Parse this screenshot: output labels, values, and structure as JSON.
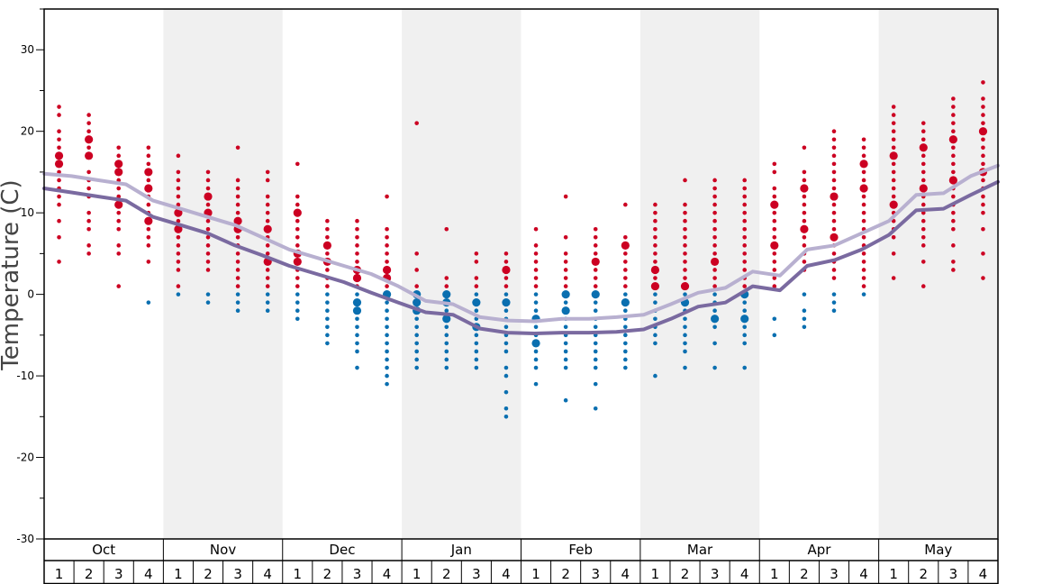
{
  "chart_data": {
    "type": "scatter",
    "ylabel": "Temperature (C)",
    "ylim": [
      -30,
      35
    ],
    "yticks": [
      -30,
      -20,
      -10,
      0,
      10,
      20,
      30
    ],
    "months": [
      "Oct",
      "Nov",
      "Dec",
      "Jan",
      "Feb",
      "Mar",
      "Apr",
      "May"
    ],
    "weeks": [
      "1",
      "2",
      "3",
      "4"
    ],
    "colors": {
      "warm": "#cc0022",
      "cold": "#0a6fb0",
      "upper_line": "#b8b0d0",
      "lower_line": "#7a6aa0",
      "band": "#f0f0f0"
    },
    "series": [
      {
        "values": [
          14.8,
          14.5,
          14.0,
          13.5,
          11.5,
          10.5,
          9.5,
          8.5,
          7.0,
          5.5,
          4.5,
          3.5,
          2.5,
          1.0,
          -0.8,
          -1.2,
          -2.8,
          -3.2,
          -3.3,
          -3.0,
          -3.0,
          -2.8,
          -2.5,
          -1.2,
          0.2,
          0.8,
          2.8,
          2.3,
          5.5,
          6.0,
          7.5,
          9.0,
          12.2,
          12.4,
          14.5,
          15.8
        ]
      },
      {
        "values": [
          13.0,
          12.5,
          12.0,
          11.5,
          9.5,
          8.5,
          7.5,
          6.0,
          4.8,
          3.5,
          2.5,
          1.5,
          0.2,
          -1.0,
          -2.2,
          -2.5,
          -4.2,
          -4.7,
          -4.8,
          -4.7,
          -4.7,
          -4.6,
          -4.3,
          -3.0,
          -1.5,
          -1.0,
          1.0,
          0.5,
          3.5,
          4.2,
          5.5,
          7.3,
          10.3,
          10.5,
          12.2,
          13.8
        ]
      }
    ],
    "points": [
      {
        "week": 1,
        "temps": [
          23,
          22,
          20,
          19,
          18,
          17,
          16,
          15,
          14,
          13,
          12,
          11,
          9,
          7,
          4
        ],
        "big": [
          17,
          16
        ]
      },
      {
        "week": 2,
        "temps": [
          22,
          21,
          20,
          19,
          18,
          17,
          15,
          14,
          13,
          12,
          10,
          9,
          8,
          6,
          5
        ],
        "big": [
          19,
          17
        ]
      },
      {
        "week": 3,
        "temps": [
          18,
          17,
          16,
          15,
          14,
          13,
          12,
          11,
          10,
          9,
          8,
          6,
          5,
          1
        ],
        "big": [
          16,
          15,
          11
        ]
      },
      {
        "week": 4,
        "temps": [
          18,
          17,
          16,
          15,
          14,
          13,
          12,
          11,
          10,
          9,
          8,
          7,
          6,
          4,
          -1
        ],
        "big": [
          15,
          13,
          9
        ]
      },
      {
        "week": 5,
        "temps": [
          17,
          15,
          14,
          13,
          12,
          11,
          10,
          9,
          8,
          7,
          6,
          5,
          4,
          3,
          1,
          0
        ],
        "big": [
          10,
          8
        ]
      },
      {
        "week": 6,
        "temps": [
          15,
          14,
          13,
          12,
          11,
          10,
          9,
          8,
          7,
          6,
          5,
          4,
          3,
          0,
          -1
        ],
        "big": [
          12,
          10
        ]
      },
      {
        "week": 7,
        "temps": [
          18,
          14,
          13,
          12,
          11,
          10,
          9,
          8,
          7,
          6,
          5,
          4,
          3,
          2,
          1,
          0,
          -1,
          -2
        ],
        "big": [
          9,
          8
        ]
      },
      {
        "week": 8,
        "temps": [
          15,
          14,
          12,
          11,
          10,
          9,
          8,
          7,
          6,
          5,
          4,
          3,
          2,
          1,
          0,
          -1,
          -2
        ],
        "big": [
          8,
          4
        ]
      },
      {
        "week": 9,
        "temps": [
          16,
          12,
          11,
          10,
          9,
          8,
          7,
          6,
          5,
          4,
          3,
          2,
          1,
          0,
          -1,
          -2,
          -3
        ],
        "big": [
          4,
          5,
          10
        ]
      },
      {
        "week": 10,
        "temps": [
          9,
          8,
          7,
          6,
          5,
          4,
          3,
          2,
          1,
          0,
          -1,
          -2,
          -3,
          -4,
          -5,
          -6
        ],
        "big": [
          6,
          4
        ]
      },
      {
        "week": 11,
        "temps": [
          9,
          8,
          7,
          6,
          5,
          4,
          3,
          2,
          1,
          0,
          -1,
          -2,
          -3,
          -4,
          -5,
          -6,
          -7,
          -9
        ],
        "big": [
          3,
          2,
          -1,
          -2
        ]
      },
      {
        "week": 12,
        "temps": [
          12,
          8,
          7,
          6,
          5,
          4,
          3,
          2,
          1,
          0,
          -1,
          -2,
          -3,
          -4,
          -5,
          -6,
          -7,
          -8,
          -9,
          -10,
          -11
        ],
        "big": [
          3,
          2,
          0
        ]
      },
      {
        "week": 13,
        "temps": [
          21,
          5,
          3,
          1,
          0,
          -1,
          -2,
          -3,
          -4,
          -5,
          -6,
          -7,
          -8,
          -9
        ],
        "big": [
          0,
          -1,
          -2
        ]
      },
      {
        "week": 14,
        "temps": [
          8,
          2,
          1,
          0,
          -1,
          -2,
          -3,
          -4,
          -5,
          -6,
          -7,
          -8,
          -9
        ],
        "big": [
          0,
          -1,
          -3
        ]
      },
      {
        "week": 15,
        "temps": [
          5,
          4,
          2,
          1,
          0,
          -1,
          -2,
          -3,
          -4,
          -5,
          -6,
          -7,
          -8,
          -9
        ],
        "big": [
          -1,
          -4
        ]
      },
      {
        "week": 16,
        "temps": [
          5,
          4,
          3,
          2,
          1,
          0,
          -1,
          -2,
          -3,
          -4,
          -5,
          -6,
          -7,
          -9,
          -10,
          -12,
          -14,
          -15
        ],
        "big": [
          3,
          -1
        ]
      },
      {
        "week": 17,
        "temps": [
          8,
          6,
          5,
          4,
          3,
          2,
          1,
          0,
          -1,
          -2,
          -3,
          -4,
          -5,
          -6,
          -7,
          -8,
          -9,
          -11
        ],
        "big": [
          -6,
          -3
        ]
      },
      {
        "week": 18,
        "temps": [
          12,
          7,
          5,
          4,
          3,
          2,
          1,
          0,
          -1,
          -2,
          -3,
          -4,
          -5,
          -6,
          -7,
          -8,
          -9,
          -13
        ],
        "big": [
          -2,
          0
        ]
      },
      {
        "week": 19,
        "temps": [
          8,
          7,
          6,
          5,
          4,
          3,
          2,
          1,
          0,
          -1,
          -2,
          -3,
          -4,
          -5,
          -6,
          -7,
          -8,
          -9,
          -11,
          -14
        ],
        "big": [
          4,
          0
        ]
      },
      {
        "week": 20,
        "temps": [
          11,
          7,
          6,
          5,
          4,
          3,
          2,
          1,
          0,
          -1,
          -2,
          -3,
          -4,
          -5,
          -6,
          -7,
          -8,
          -9
        ],
        "big": [
          6,
          -1
        ]
      },
      {
        "week": 21,
        "temps": [
          11,
          10,
          9,
          8,
          7,
          6,
          5,
          4,
          3,
          2,
          1,
          0,
          -1,
          -2,
          -3,
          -4,
          -5,
          -6,
          -10
        ],
        "big": [
          1,
          3
        ]
      },
      {
        "week": 22,
        "temps": [
          14,
          11,
          10,
          9,
          8,
          7,
          6,
          5,
          4,
          3,
          2,
          1,
          0,
          -1,
          -2,
          -3,
          -4,
          -5,
          -6,
          -7,
          -9
        ],
        "big": [
          1,
          -1
        ]
      },
      {
        "week": 23,
        "temps": [
          14,
          13,
          12,
          11,
          10,
          9,
          8,
          7,
          6,
          5,
          4,
          3,
          2,
          1,
          0,
          -1,
          -2,
          -3,
          -4,
          -6,
          -9
        ],
        "big": [
          4,
          -3
        ]
      },
      {
        "week": 24,
        "temps": [
          14,
          13,
          12,
          11,
          10,
          9,
          8,
          7,
          6,
          5,
          4,
          3,
          2,
          1,
          0,
          -1,
          -2,
          -3,
          -4,
          -5,
          -6,
          -9
        ],
        "big": [
          0,
          -3
        ]
      },
      {
        "week": 25,
        "temps": [
          16,
          15,
          13,
          12,
          11,
          10,
          9,
          8,
          7,
          6,
          5,
          4,
          3,
          2,
          1,
          -3,
          -5
        ],
        "big": [
          11,
          6
        ]
      },
      {
        "week": 26,
        "temps": [
          18,
          15,
          14,
          13,
          12,
          11,
          10,
          9,
          8,
          7,
          6,
          5,
          4,
          3,
          0,
          -2,
          -3,
          -4
        ],
        "big": [
          13,
          8
        ]
      },
      {
        "week": 27,
        "temps": [
          20,
          19,
          18,
          17,
          16,
          15,
          14,
          13,
          12,
          11,
          10,
          9,
          8,
          7,
          6,
          5,
          4,
          3,
          2,
          0,
          -1,
          -2
        ],
        "big": [
          12,
          7
        ]
      },
      {
        "week": 28,
        "temps": [
          19,
          18,
          17,
          16,
          15,
          14,
          13,
          12,
          11,
          10,
          9,
          8,
          7,
          6,
          5,
          4,
          3,
          2,
          1,
          0
        ],
        "big": [
          16,
          13
        ]
      },
      {
        "week": 29,
        "temps": [
          23,
          22,
          21,
          20,
          19,
          18,
          17,
          16,
          15,
          14,
          13,
          12,
          11,
          10,
          9,
          8,
          7,
          5,
          2
        ],
        "big": [
          17,
          11
        ]
      },
      {
        "week": 30,
        "temps": [
          21,
          20,
          19,
          18,
          17,
          16,
          15,
          14,
          13,
          12,
          11,
          10,
          9,
          8,
          7,
          6,
          4,
          1
        ],
        "big": [
          18,
          13
        ]
      },
      {
        "week": 31,
        "temps": [
          24,
          23,
          22,
          21,
          20,
          19,
          18,
          17,
          16,
          15,
          14,
          13,
          12,
          11,
          10,
          9,
          8,
          6,
          4,
          3
        ],
        "big": [
          19,
          14
        ]
      },
      {
        "week": 32,
        "temps": [
          26,
          24,
          23,
          22,
          21,
          20,
          19,
          18,
          17,
          16,
          15,
          14,
          13,
          12,
          11,
          10,
          8,
          5,
          2
        ],
        "big": [
          20,
          15
        ]
      }
    ]
  }
}
